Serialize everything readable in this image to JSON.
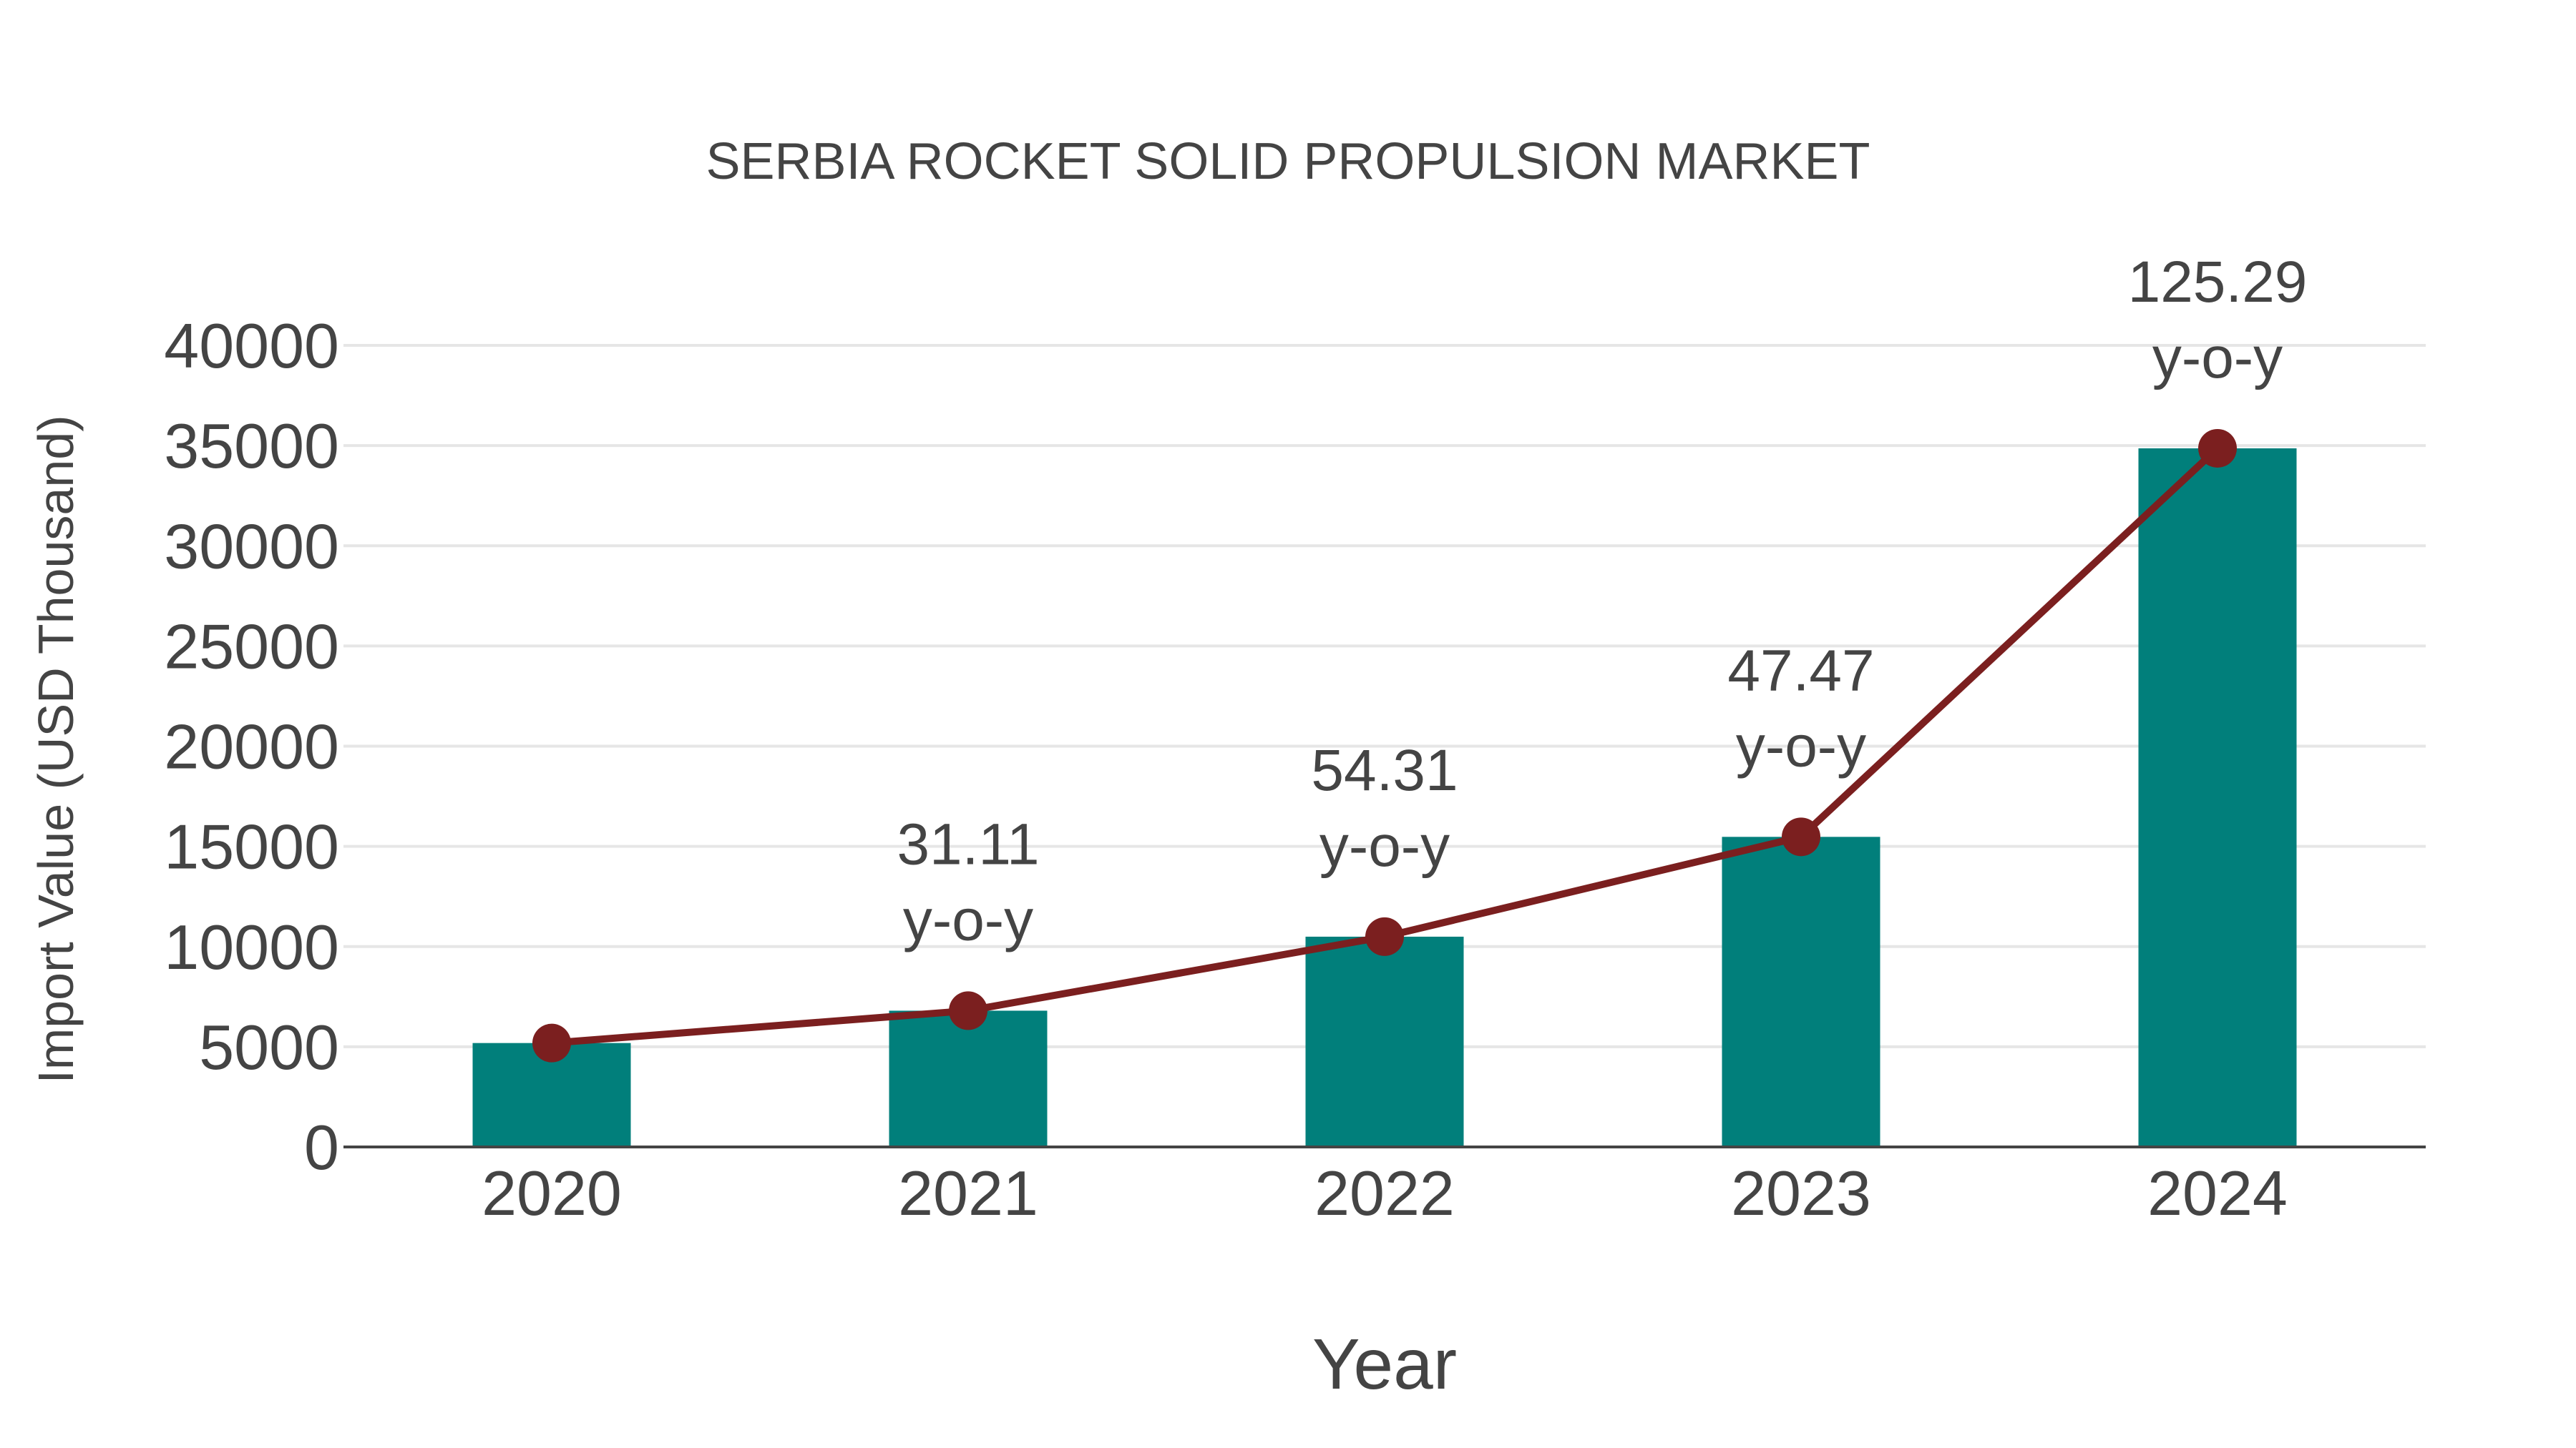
{
  "chart_data": {
    "type": "bar+line",
    "title": "SERBIA ROCKET SOLID PROPULSION MARKET",
    "xlabel": "Year",
    "ylabel": "Import Value (USD Thousand)",
    "categories": [
      "2020",
      "2021",
      "2022",
      "2023",
      "2024"
    ],
    "series": [
      {
        "name": "Import Value",
        "kind": "bar",
        "color": "#017F7B",
        "values": [
          5186,
          6800,
          10493,
          15474,
          34862
        ]
      },
      {
        "name": "Import Value trend",
        "kind": "line",
        "color": "#7B1F1F",
        "values": [
          5186,
          6800,
          10493,
          15474,
          34862
        ]
      }
    ],
    "annotations": [
      {
        "category": "2021",
        "value": "31.11",
        "suffix": "y-o-y"
      },
      {
        "category": "2022",
        "value": "54.31",
        "suffix": "y-o-y"
      },
      {
        "category": "2023",
        "value": "47.47",
        "suffix": "y-o-y"
      },
      {
        "category": "2024",
        "value": "125.29",
        "suffix": "y-o-y"
      }
    ],
    "yticks": [
      "0",
      "5000",
      "10000",
      "15000",
      "20000",
      "25000",
      "30000",
      "35000",
      "40000"
    ],
    "ylim": [
      0,
      40000
    ],
    "grid": true,
    "legend": "none"
  },
  "colors": {
    "bar": "#017F7B",
    "line": "#7B1F1F",
    "text": "#444444",
    "grid": "#e6e6e6"
  }
}
